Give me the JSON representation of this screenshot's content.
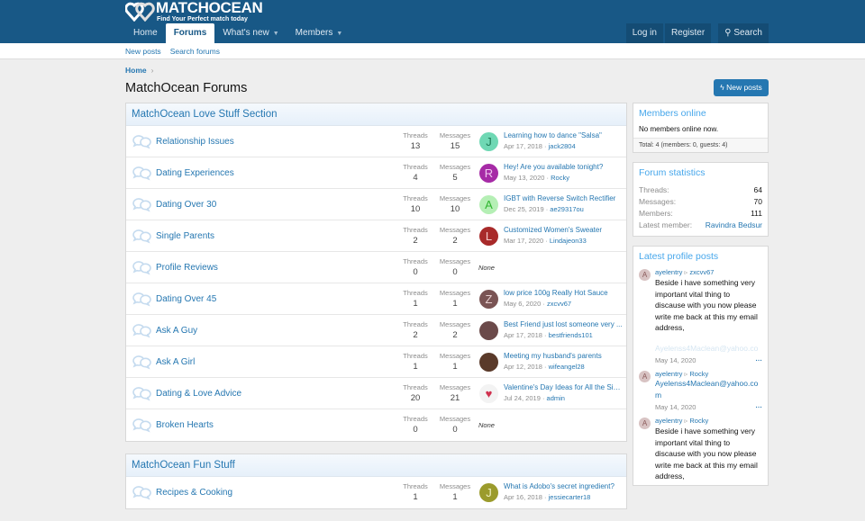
{
  "brand": {
    "name": "MATCHOCEAN",
    "tagline": "Find Your Perfect match today"
  },
  "nav": {
    "tabs": [
      {
        "label": "Home"
      },
      {
        "label": "Forums"
      },
      {
        "label": "What's new"
      },
      {
        "label": "Members"
      }
    ],
    "login": "Log in",
    "register": "Register",
    "search": "Search"
  },
  "subnav": {
    "new_posts": "New posts",
    "search_forums": "Search forums"
  },
  "breadcrumb": {
    "home": "Home"
  },
  "page_title": "MatchOcean Forums",
  "new_posts_button": "New posts",
  "labels": {
    "threads": "Threads",
    "messages": "Messages",
    "none": "None"
  },
  "categories": [
    {
      "title": "MatchOcean Love Stuff Section",
      "forums": [
        {
          "name": "Relationship Issues",
          "threads": "13",
          "messages": "15",
          "avatar": "J",
          "avatar_color": "#6fd8b4",
          "avatar_text": "#1e7a55",
          "last_title": "Learning how to dance \"Salsa\"",
          "last_date": "Apr 17, 2018",
          "last_user": "jack2804"
        },
        {
          "name": "Dating Experiences",
          "threads": "4",
          "messages": "5",
          "avatar": "R",
          "avatar_color": "#a62ba6",
          "avatar_text": "#f0c8f0",
          "last_title": "Hey! Are you available tonight?",
          "last_date": "May 13, 2020",
          "last_user": "Rocky"
        },
        {
          "name": "Dating Over 30",
          "threads": "10",
          "messages": "10",
          "avatar": "A",
          "avatar_color": "#b5efb5",
          "avatar_text": "#2fb52f",
          "last_title": "IGBT with Reverse Switch Rectifier",
          "last_date": "Dec 25, 2019",
          "last_user": "ae29317ou"
        },
        {
          "name": "Single Parents",
          "threads": "2",
          "messages": "2",
          "avatar": "L",
          "avatar_color": "#a82a2a",
          "avatar_text": "#f5caca",
          "last_title": "Customized Women's Sweater",
          "last_date": "Mar 17, 2020",
          "last_user": "Lindajeon33"
        },
        {
          "name": "Profile Reviews",
          "threads": "0",
          "messages": "0"
        },
        {
          "name": "Dating Over 45",
          "threads": "1",
          "messages": "1",
          "avatar": "Z",
          "avatar_color": "#7a5454",
          "avatar_text": "#e8d0d0",
          "last_title": "low price 100g Really Hot Sauce",
          "last_date": "May 6, 2020",
          "last_user": "zxcvv67"
        },
        {
          "name": "Ask A Guy",
          "threads": "2",
          "messages": "2",
          "avatar": "",
          "avatar_color": "#6b4a4a",
          "avatar_text": "#fff",
          "last_title": "Best Friend just lost someone very ...",
          "last_date": "Apr 17, 2018",
          "last_user": "bestfriends101"
        },
        {
          "name": "Ask A Girl",
          "threads": "1",
          "messages": "1",
          "avatar": "",
          "avatar_color": "#5a3a2a",
          "avatar_text": "#fff",
          "last_title": "Meeting my husband's parents",
          "last_date": "Apr 12, 2018",
          "last_user": "wifeangel28"
        },
        {
          "name": "Dating & Love Advice",
          "threads": "20",
          "messages": "21",
          "avatar": "♥",
          "avatar_color": "#f3f3f3",
          "avatar_text": "#d0314f",
          "last_title": "Valentine's Day Ideas for All the Sin...",
          "last_date": "Jul 24, 2019",
          "last_user": "admin"
        },
        {
          "name": "Broken Hearts",
          "threads": "0",
          "messages": "0"
        }
      ]
    },
    {
      "title": "MatchOcean Fun Stuff",
      "forums": [
        {
          "name": "Recipes & Cooking",
          "threads": "1",
          "messages": "1",
          "avatar": "J",
          "avatar_color": "#9b9b2c",
          "avatar_text": "#f0f0c0",
          "last_title": "What is Adobo's secret ingredient?",
          "last_date": "Apr 16, 2018",
          "last_user": "jessiecarter18"
        }
      ]
    }
  ],
  "members_online": {
    "title": "Members online",
    "text": "No members online now.",
    "total": "Total: 4 (members: 0, guests: 4)"
  },
  "forum_stats": {
    "title": "Forum statistics",
    "rows": [
      {
        "label": "Threads:",
        "value": "64"
      },
      {
        "label": "Messages:",
        "value": "70"
      },
      {
        "label": "Members:",
        "value": "111"
      },
      {
        "label": "Latest member:",
        "value": "Ravindra Bedsur"
      }
    ]
  },
  "profile_posts": {
    "title": "Latest profile posts",
    "posts": [
      {
        "author": "ayelentry",
        "target": "zxcvv67",
        "text": "Beside i have something very important vital thing to discause with you now please write me back at this my email address,",
        "faded": "Ayelenss4Maclean@yahoo.co",
        "date": "May 14, 2020"
      },
      {
        "author": "ayelentry",
        "target": "Rocky",
        "email": "Ayelenss4Maclean@yahoo.com",
        "date": "May 14, 2020"
      },
      {
        "author": "ayelentry",
        "target": "Rocky",
        "text": "Beside i have something very important vital thing to discause with you now please write me back at this my email address,"
      }
    ]
  }
}
